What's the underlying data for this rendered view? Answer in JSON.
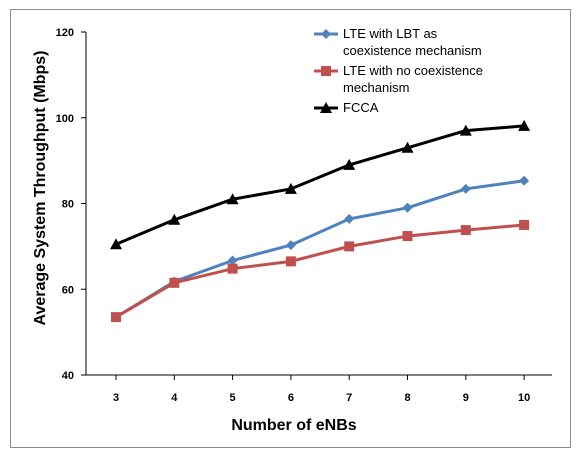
{
  "chart_data": {
    "type": "line",
    "x": [
      3,
      4,
      5,
      6,
      7,
      8,
      9,
      10
    ],
    "xlabel": "Number of eNBs",
    "ylabel": "Average System Throughput (Mbps)",
    "ylim": [
      40,
      120
    ],
    "yticks": [
      40,
      60,
      80,
      100,
      120
    ],
    "grid": false,
    "legend_position": "top-right",
    "series": [
      {
        "name_lines": [
          "LTE with LBT as",
          "coexistence mechanism"
        ],
        "values": [
          53.5,
          61.8,
          66.7,
          70.3,
          76.4,
          79.0,
          83.4,
          85.3
        ],
        "color": "#4f81bd",
        "marker": "diamond"
      },
      {
        "name_lines": [
          "LTE with no coexistence",
          "mechanism"
        ],
        "values": [
          53.5,
          61.5,
          64.8,
          66.5,
          70.0,
          72.4,
          73.8,
          75.0
        ],
        "color": "#c0504d",
        "marker": "square"
      },
      {
        "name_lines": [
          "FCCA"
        ],
        "values": [
          70.5,
          76.2,
          81.0,
          83.4,
          89.0,
          93.0,
          97.0,
          98.1
        ],
        "color": "#000000",
        "marker": "triangle"
      }
    ]
  }
}
